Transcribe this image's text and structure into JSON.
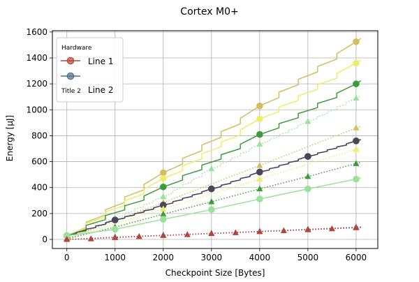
{
  "chart_data": {
    "type": "line",
    "title": "Cortex M0+",
    "xlabel": "Checkpoint Size [Bytes]",
    "ylabel": "Energy [μJ]",
    "xlim": [
      -300,
      6450
    ],
    "ylim": [
      -70,
      1610
    ],
    "x_ticks": [
      0,
      1000,
      2000,
      3000,
      4000,
      5000,
      6000
    ],
    "y_ticks": [
      0,
      200,
      400,
      600,
      800,
      1000,
      1200,
      1400,
      1600
    ],
    "grid": true,
    "legend": {
      "placement": "top-left",
      "entries": [
        {
          "group": "Hardware",
          "label": "Line 1",
          "color": "#b5443a"
        },
        {
          "group": "Title 2",
          "label": "Line 2",
          "color": "#546e89"
        }
      ]
    },
    "series": [
      {
        "style": "solid",
        "marker": "circle",
        "color": "#d4bd5e",
        "points": [
          [
            0,
            28
          ],
          [
            2000,
            515
          ],
          [
            4000,
            1030
          ],
          [
            6000,
            1525
          ]
        ],
        "x_end": 6100,
        "y_end": 1550,
        "stepped": true
      },
      {
        "style": "solid",
        "marker": "circle",
        "color": "#eded6c",
        "points": [
          [
            0,
            28
          ],
          [
            2000,
            470
          ],
          [
            4000,
            930
          ],
          [
            6000,
            1360
          ]
        ],
        "x_end": 6100,
        "y_end": 1385,
        "stepped": true
      },
      {
        "style": "solid",
        "marker": "circle",
        "color": "#3c9c3c",
        "points": [
          [
            0,
            28
          ],
          [
            2000,
            405
          ],
          [
            4000,
            810
          ],
          [
            6000,
            1200
          ]
        ],
        "x_end": 6100,
        "y_end": 1225,
        "stepped": true
      },
      {
        "style": "dotted",
        "marker": "triangle",
        "color": "#9ae29a",
        "points": [
          [
            0,
            5
          ],
          [
            1000,
            165
          ],
          [
            2000,
            330
          ],
          [
            3000,
            545
          ],
          [
            4000,
            735
          ],
          [
            5000,
            910
          ],
          [
            6000,
            1090
          ]
        ],
        "x_end": 6100,
        "y_end": 1105,
        "stepped": true
      },
      {
        "style": "dotted",
        "marker": "triangle",
        "color": "#d4bd5e",
        "points": [
          [
            0,
            5
          ],
          [
            2000,
            285
          ],
          [
            4000,
            570
          ],
          [
            6000,
            860
          ]
        ],
        "x_end": 6100,
        "y_end": 870
      },
      {
        "style": "solid",
        "marker": "circle",
        "color": "#8a6f7f",
        "points": [
          [
            0,
            28
          ],
          [
            1000,
            150
          ],
          [
            2000,
            265
          ],
          [
            3000,
            390
          ],
          [
            4000,
            520
          ],
          [
            5000,
            640
          ],
          [
            6000,
            760
          ]
        ],
        "x_end": 6100,
        "y_end": 770,
        "stepped": true
      },
      {
        "style": "solid",
        "marker": "circle",
        "color": "#4a4658",
        "points": [
          [
            0,
            28
          ],
          [
            1000,
            150
          ],
          [
            2000,
            265
          ],
          [
            3000,
            390
          ],
          [
            4000,
            520
          ],
          [
            5000,
            640
          ],
          [
            6000,
            760
          ]
        ],
        "x_end": 6100,
        "y_end": 770,
        "stepped": true
      },
      {
        "style": "dotted",
        "marker": "triangle",
        "color": "#eded6c",
        "points": [
          [
            0,
            5
          ],
          [
            2000,
            235
          ],
          [
            4000,
            465
          ],
          [
            6000,
            695
          ]
        ],
        "x_end": 6100,
        "y_end": 705
      },
      {
        "style": "dotted",
        "marker": "triangle",
        "color": "#3c9c3c",
        "points": [
          [
            0,
            5
          ],
          [
            1000,
            95
          ],
          [
            2000,
            195
          ],
          [
            3000,
            290
          ],
          [
            4000,
            390
          ],
          [
            5000,
            485
          ],
          [
            6000,
            585
          ]
        ],
        "x_end": 6100,
        "y_end": 595
      },
      {
        "style": "solid",
        "marker": "circle",
        "color": "#9ae29a",
        "points": [
          [
            0,
            28
          ],
          [
            1000,
            78
          ],
          [
            2000,
            155
          ],
          [
            3000,
            230
          ],
          [
            4000,
            312
          ],
          [
            5000,
            390
          ],
          [
            6000,
            465
          ]
        ],
        "x_end": 6100,
        "y_end": 475
      },
      {
        "style": "dotted",
        "marker": "triangle",
        "color": "#546e89",
        "points": [
          [
            0,
            0
          ],
          [
            1000,
            18
          ],
          [
            2000,
            32
          ],
          [
            3000,
            47
          ],
          [
            4000,
            62
          ],
          [
            5000,
            78
          ],
          [
            6000,
            95
          ]
        ],
        "x_end": 6100,
        "y_end": 97
      },
      {
        "style": "dotted",
        "marker": "triangle",
        "color": "#b5443a",
        "points": [
          [
            0,
            0
          ],
          [
            500,
            5
          ],
          [
            1000,
            14
          ],
          [
            1500,
            22
          ],
          [
            2000,
            30
          ],
          [
            2500,
            37
          ],
          [
            3000,
            45
          ],
          [
            3500,
            52
          ],
          [
            4000,
            60
          ],
          [
            4500,
            67
          ],
          [
            5000,
            75
          ],
          [
            5500,
            82
          ],
          [
            6000,
            90
          ]
        ],
        "x_end": 6100,
        "y_end": 92
      }
    ]
  }
}
